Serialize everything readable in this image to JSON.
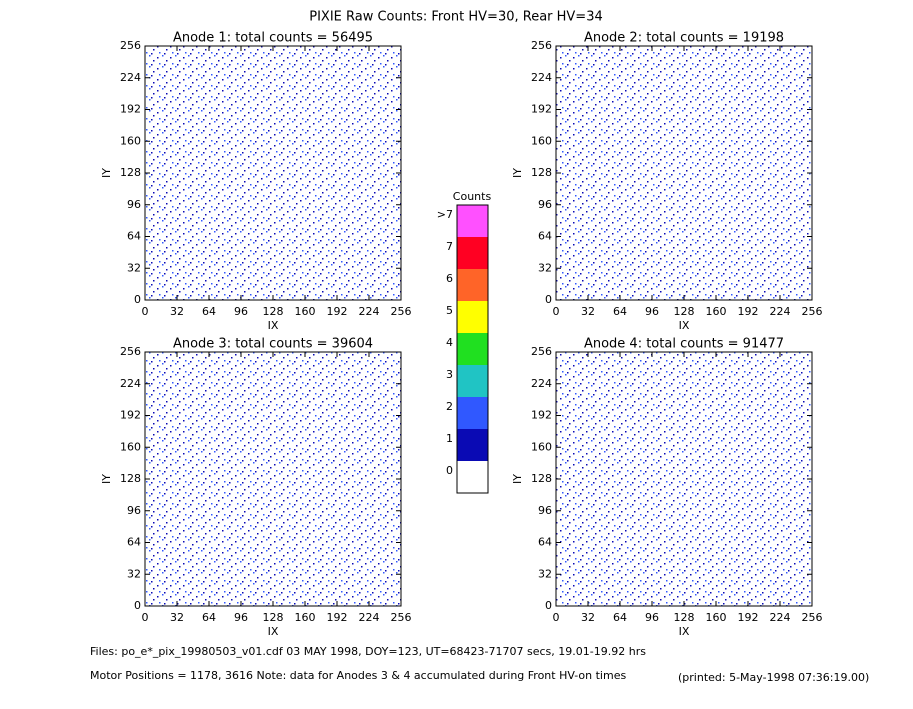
{
  "title": "PIXIE Raw Counts:  Front HV=30, Rear HV=34",
  "chart_data": [
    {
      "type": "heatmap",
      "title": "Anode 1: total counts = 56495",
      "xlabel": "IX",
      "ylabel": "IY",
      "xlim": [
        0,
        256
      ],
      "ylim": [
        0,
        256
      ],
      "xticks": [
        0,
        32,
        64,
        96,
        128,
        160,
        192,
        224,
        256
      ],
      "yticks": [
        0,
        32,
        64,
        96,
        128,
        160,
        192,
        224,
        256
      ]
    },
    {
      "type": "heatmap",
      "title": "Anode 2: total counts = 19198",
      "xlabel": "IX",
      "ylabel": "IY",
      "xlim": [
        0,
        256
      ],
      "ylim": [
        0,
        256
      ],
      "xticks": [
        0,
        32,
        64,
        96,
        128,
        160,
        192,
        224,
        256
      ],
      "yticks": [
        0,
        32,
        64,
        96,
        128,
        160,
        192,
        224,
        256
      ]
    },
    {
      "type": "heatmap",
      "title": "Anode 3: total counts = 39604",
      "xlabel": "IX",
      "ylabel": "IY",
      "xlim": [
        0,
        256
      ],
      "ylim": [
        0,
        256
      ],
      "xticks": [
        0,
        32,
        64,
        96,
        128,
        160,
        192,
        224,
        256
      ],
      "yticks": [
        0,
        32,
        64,
        96,
        128,
        160,
        192,
        224,
        256
      ]
    },
    {
      "type": "heatmap",
      "title": "Anode 4: total counts = 91477",
      "xlabel": "IX",
      "ylabel": "IY",
      "xlim": [
        0,
        256
      ],
      "ylim": [
        0,
        256
      ],
      "xticks": [
        0,
        32,
        64,
        96,
        128,
        160,
        192,
        224,
        256
      ],
      "yticks": [
        0,
        32,
        64,
        96,
        128,
        160,
        192,
        224,
        256
      ]
    }
  ],
  "colorbar": {
    "title": "Counts",
    "labels": [
      "0",
      "1",
      "2",
      "3",
      "4",
      "5",
      "6",
      "7",
      ">7"
    ],
    "colors": [
      "#ffffff",
      "#0a0ab4",
      "#3058ff",
      "#20c4c4",
      "#20e020",
      "#ffff00",
      "#ff6428",
      "#ff0022",
      "#ff50ff"
    ]
  },
  "footer": {
    "files": "Files: po_e*_pix_19980503_v01.cdf    03 MAY 1998, DOY=123, UT=68423-71707 secs, 19.01-19.92 hrs",
    "motor": "Motor Positions = 1178, 3616   Note: data for Anodes 3 & 4 accumulated during Front HV-on times",
    "printed": "(printed:  5-May-1998 07:36:19.00)"
  }
}
